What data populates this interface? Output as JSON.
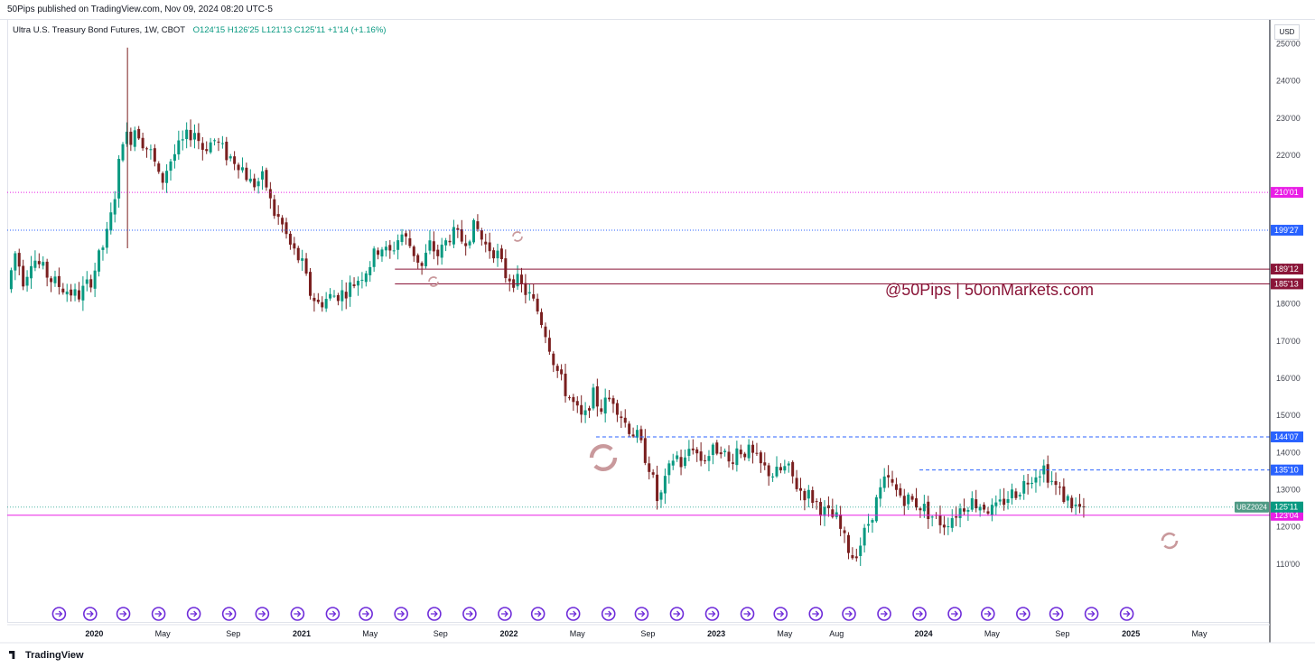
{
  "header": {
    "published": "50Pips published on TradingView.com, Nov 09, 2024 08:20 UTC-5"
  },
  "legend": {
    "symbol": "Ultra U.S. Treasury Bond Futures, 1W, CBOT",
    "ohlc": "O124'15   H126'25   L121'13   C125'11   +1'14 (+1.16%)"
  },
  "currency": "USD",
  "watermark": "@50Pips | 50onMarkets.com",
  "footer": {
    "brand": "TradingView"
  },
  "colors": {
    "up": "#089981",
    "down": "#7a1f1f",
    "magenta": "#e91ee6",
    "blue": "#2962ff",
    "maroon": "#8a1538",
    "icon_purple": "#6e2bd9",
    "reload_icon": "#c9999c"
  },
  "chart_data": {
    "type": "candlestick",
    "symbol": "UBZ2024",
    "interval": "1W",
    "ylim": [
      100,
      255
    ],
    "y_ticks": [
      "110'00",
      "120'00",
      "130'00",
      "140'00",
      "150'00",
      "160'00",
      "170'00",
      "180'00",
      "190'00",
      "200'00",
      "210'00",
      "220'00",
      "230'00",
      "240'00",
      "250'00"
    ],
    "y_tick_values": [
      110,
      120,
      130,
      140,
      150,
      160,
      170,
      180,
      190,
      200,
      210,
      220,
      230,
      240,
      250
    ],
    "x_ticks": [
      {
        "label": "2020",
        "t": 2020.0
      },
      {
        "label": "May",
        "t": 2020.33
      },
      {
        "label": "Sep",
        "t": 2020.67
      },
      {
        "label": "2021",
        "t": 2021.0
      },
      {
        "label": "May",
        "t": 2021.33
      },
      {
        "label": "Sep",
        "t": 2021.67
      },
      {
        "label": "2022",
        "t": 2022.0
      },
      {
        "label": "May",
        "t": 2022.33
      },
      {
        "label": "Sep",
        "t": 2022.67
      },
      {
        "label": "2023",
        "t": 2023.0
      },
      {
        "label": "May",
        "t": 2023.33
      },
      {
        "label": "Aug",
        "t": 2023.58
      },
      {
        "label": "2024",
        "t": 2024.0
      },
      {
        "label": "May",
        "t": 2024.33
      },
      {
        "label": "Sep",
        "t": 2024.67
      },
      {
        "label": "2025",
        "t": 2025.0
      },
      {
        "label": "May",
        "t": 2025.33
      }
    ],
    "price_path": [
      [
        2019.58,
        184
      ],
      [
        2019.62,
        194
      ],
      [
        2019.66,
        186
      ],
      [
        2019.7,
        193
      ],
      [
        2019.74,
        190
      ],
      [
        2019.8,
        186
      ],
      [
        2019.86,
        184
      ],
      [
        2019.92,
        182
      ],
      [
        2019.98,
        186
      ],
      [
        2020.02,
        192
      ],
      [
        2020.07,
        200
      ],
      [
        2020.1,
        210
      ],
      [
        2020.14,
        226
      ],
      [
        2020.17,
        224
      ],
      [
        2020.2,
        228
      ],
      [
        2020.24,
        223
      ],
      [
        2020.28,
        220
      ],
      [
        2020.32,
        212
      ],
      [
        2020.36,
        218
      ],
      [
        2020.42,
        223
      ],
      [
        2020.48,
        227
      ],
      [
        2020.52,
        222
      ],
      [
        2020.58,
        224
      ],
      [
        2020.64,
        220
      ],
      [
        2020.7,
        218
      ],
      [
        2020.76,
        212
      ],
      [
        2020.82,
        214
      ],
      [
        2020.86,
        205
      ],
      [
        2020.9,
        202
      ],
      [
        2020.95,
        195
      ],
      [
        2021.0,
        191
      ],
      [
        2021.04,
        183
      ],
      [
        2021.08,
        180
      ],
      [
        2021.14,
        182
      ],
      [
        2021.2,
        183
      ],
      [
        2021.26,
        186
      ],
      [
        2021.32,
        190
      ],
      [
        2021.38,
        196
      ],
      [
        2021.42,
        193
      ],
      [
        2021.48,
        199
      ],
      [
        2021.52,
        196
      ],
      [
        2021.58,
        190
      ],
      [
        2021.62,
        196
      ],
      [
        2021.66,
        193
      ],
      [
        2021.72,
        199
      ],
      [
        2021.78,
        197
      ],
      [
        2021.84,
        201
      ],
      [
        2021.88,
        196
      ],
      [
        2021.94,
        194
      ],
      [
        2021.98,
        188
      ],
      [
        2022.04,
        186
      ],
      [
        2022.1,
        182
      ],
      [
        2022.14,
        178
      ],
      [
        2022.18,
        172
      ],
      [
        2022.22,
        164
      ],
      [
        2022.26,
        158
      ],
      [
        2022.32,
        152
      ],
      [
        2022.36,
        148
      ],
      [
        2022.4,
        156
      ],
      [
        2022.44,
        152
      ],
      [
        2022.5,
        155
      ],
      [
        2022.56,
        148
      ],
      [
        2022.62,
        144
      ],
      [
        2022.68,
        136
      ],
      [
        2022.72,
        126
      ],
      [
        2022.76,
        133
      ],
      [
        2022.8,
        140
      ],
      [
        2022.84,
        136
      ],
      [
        2022.88,
        143
      ],
      [
        2022.92,
        138
      ],
      [
        2022.98,
        140
      ],
      [
        2023.02,
        142
      ],
      [
        2023.06,
        137
      ],
      [
        2023.1,
        141
      ],
      [
        2023.16,
        140
      ],
      [
        2023.22,
        136
      ],
      [
        2023.28,
        134
      ],
      [
        2023.34,
        136
      ],
      [
        2023.4,
        130
      ],
      [
        2023.46,
        128
      ],
      [
        2023.52,
        124
      ],
      [
        2023.58,
        122
      ],
      [
        2023.62,
        116
      ],
      [
        2023.66,
        112
      ],
      [
        2023.7,
        116
      ],
      [
        2023.74,
        122
      ],
      [
        2023.78,
        128
      ],
      [
        2023.82,
        133
      ],
      [
        2023.86,
        130
      ],
      [
        2023.9,
        128
      ],
      [
        2023.94,
        127
      ],
      [
        2023.98,
        126
      ],
      [
        2024.02,
        124
      ],
      [
        2024.06,
        122
      ],
      [
        2024.1,
        121
      ],
      [
        2024.16,
        124
      ],
      [
        2024.22,
        127
      ],
      [
        2024.28,
        126
      ],
      [
        2024.34,
        124
      ],
      [
        2024.4,
        128
      ],
      [
        2024.46,
        130
      ],
      [
        2024.52,
        134
      ],
      [
        2024.58,
        136
      ],
      [
        2024.62,
        132
      ],
      [
        2024.66,
        129
      ],
      [
        2024.7,
        127
      ],
      [
        2024.74,
        125
      ],
      [
        2024.78,
        125.35
      ]
    ],
    "horizontal_lines": [
      {
        "price": 210.03,
        "label": "210'01",
        "color": "#e91ee6",
        "style": "dotted"
      },
      {
        "price": 199.84,
        "label": "199'27",
        "color": "#2962ff",
        "style": "dotted"
      },
      {
        "price": 189.38,
        "label": "189'12",
        "color": "#8a1538",
        "style": "solid",
        "start_t": 2021.45
      },
      {
        "price": 185.41,
        "label": "185'13",
        "color": "#8a1538",
        "style": "solid",
        "start_t": 2021.45
      },
      {
        "price": 144.22,
        "label": "144'07",
        "color": "#2962ff",
        "style": "dashed",
        "start_t": 2022.42
      },
      {
        "price": 135.31,
        "label": "135'10",
        "color": "#2962ff",
        "style": "dashed",
        "start_t": 2023.98
      },
      {
        "price": 123.13,
        "label": "123'04",
        "color": "#e91ee6",
        "style": "solid"
      }
    ],
    "last_price": {
      "price": 125.34,
      "label": "125'11",
      "symbol_label": "UBZ2024",
      "color": "#089981"
    },
    "event_icons_t": [
      2019.83,
      2019.98,
      2020.14,
      2020.31,
      2020.48,
      2020.65,
      2020.81,
      2020.98,
      2021.15,
      2021.31,
      2021.48,
      2021.64,
      2021.81,
      2021.98,
      2022.14,
      2022.31,
      2022.48,
      2022.64,
      2022.81,
      2022.98,
      2023.15,
      2023.31,
      2023.48,
      2023.64,
      2023.81,
      2023.98,
      2024.15,
      2024.31,
      2024.48,
      2024.64,
      2024.81,
      2024.98
    ]
  }
}
